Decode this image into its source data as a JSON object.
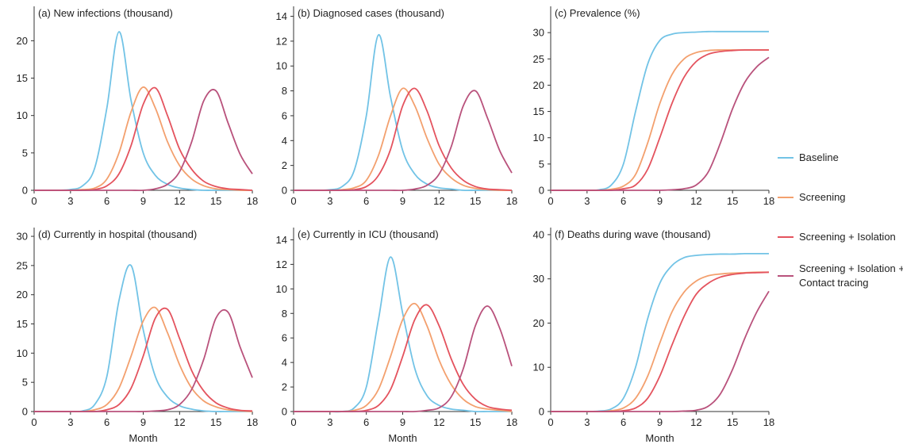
{
  "chart_data": [
    {
      "type": "line",
      "title": "(a) New infections (thousand)",
      "x": [
        0,
        1,
        2,
        3,
        4,
        5,
        6,
        7,
        8,
        9,
        10,
        11,
        12,
        13,
        14,
        15,
        16,
        17,
        18
      ],
      "xlim": [
        0,
        18
      ],
      "xticks": [
        0,
        3,
        6,
        9,
        12,
        15,
        18
      ],
      "ylim": [
        0,
        24.6
      ],
      "yticks": [
        0,
        5,
        10,
        15,
        20
      ],
      "series": [
        {
          "name": "Baseline",
          "color": "#72c3e6",
          "values": [
            0,
            0,
            0,
            0.1,
            0.6,
            3,
            11,
            21.2,
            12,
            5,
            2,
            0.8,
            0.3,
            0.1,
            0,
            0,
            0,
            0,
            0
          ]
        },
        {
          "name": "Screening",
          "color": "#f3a06e",
          "values": [
            0,
            0,
            0,
            0,
            0.1,
            0.3,
            1.5,
            5,
            10.5,
            13.8,
            11,
            6.5,
            3.3,
            1.5,
            0.6,
            0.2,
            0.1,
            0,
            0
          ]
        },
        {
          "name": "Screening + Isolation",
          "color": "#e4535e",
          "values": [
            0,
            0,
            0,
            0,
            0,
            0.1,
            0.6,
            2.2,
            6,
            11.5,
            13.7,
            10,
            5.5,
            2.8,
            1.2,
            0.5,
            0.2,
            0.1,
            0
          ]
        },
        {
          "name": "Screening + Isolation + Contact tracing",
          "color": "#b9527c",
          "values": [
            0,
            0,
            0,
            0,
            0,
            0,
            0,
            0,
            0,
            0,
            0.2,
            0.8,
            2.5,
            6.5,
            12,
            13.3,
            9,
            4.8,
            2.2
          ]
        }
      ]
    },
    {
      "type": "line",
      "title": "(b) Diagnosed cases (thousand)",
      "x": [
        0,
        1,
        2,
        3,
        4,
        5,
        6,
        7,
        8,
        9,
        10,
        11,
        12,
        13,
        14,
        15,
        16,
        17,
        18
      ],
      "xlim": [
        0,
        18
      ],
      "xticks": [
        0,
        3,
        6,
        9,
        12,
        15,
        18
      ],
      "ylim": [
        0,
        14.8
      ],
      "yticks": [
        0,
        2,
        4,
        6,
        8,
        10,
        12,
        14
      ],
      "series": [
        {
          "color": "#72c3e6",
          "values": [
            0,
            0,
            0,
            0.05,
            0.3,
            1.6,
            6,
            12.5,
            7.5,
            3.2,
            1.3,
            0.5,
            0.2,
            0.1,
            0,
            0,
            0,
            0,
            0
          ]
        },
        {
          "color": "#f3a06e",
          "values": [
            0,
            0,
            0,
            0,
            0.05,
            0.2,
            0.8,
            2.8,
            6,
            8.2,
            6.8,
            4.2,
            2.1,
            1,
            0.4,
            0.15,
            0.05,
            0,
            0
          ]
        },
        {
          "color": "#e4535e",
          "values": [
            0,
            0,
            0,
            0,
            0,
            0.05,
            0.3,
            1.2,
            3.3,
            6.8,
            8.2,
            6.4,
            3.6,
            1.8,
            0.8,
            0.3,
            0.1,
            0.05,
            0
          ]
        },
        {
          "color": "#b9527c",
          "values": [
            0,
            0,
            0,
            0,
            0,
            0,
            0,
            0,
            0,
            0,
            0.1,
            0.4,
            1.3,
            3.5,
            6.8,
            8,
            5.8,
            3.2,
            1.4
          ]
        }
      ]
    },
    {
      "type": "line",
      "title": "(c) Prevalence (%)",
      "x": [
        0,
        1,
        2,
        3,
        4,
        5,
        6,
        7,
        8,
        9,
        10,
        11,
        12,
        13,
        14,
        15,
        16,
        17,
        18
      ],
      "xlim": [
        0,
        18
      ],
      "xticks": [
        0,
        3,
        6,
        9,
        12,
        15,
        18
      ],
      "ylim": [
        0,
        35
      ],
      "yticks": [
        0,
        5,
        10,
        15,
        20,
        25,
        30
      ],
      "series": [
        {
          "color": "#72c3e6",
          "values": [
            0,
            0,
            0,
            0,
            0.1,
            1,
            5,
            15,
            24,
            28.5,
            29.7,
            30,
            30.1,
            30.2,
            30.2,
            30.2,
            30.2,
            30.2,
            30.2
          ]
        },
        {
          "color": "#f3a06e",
          "values": [
            0,
            0,
            0,
            0,
            0,
            0.2,
            0.8,
            3,
            9,
            16.5,
            22,
            25,
            26.2,
            26.6,
            26.7,
            26.7,
            26.7,
            26.7,
            26.7
          ]
        },
        {
          "color": "#e4535e",
          "values": [
            0,
            0,
            0,
            0,
            0,
            0,
            0.3,
            1,
            4,
            10,
            16.5,
            21.5,
            24.5,
            25.9,
            26.4,
            26.6,
            26.7,
            26.7,
            26.7
          ]
        },
        {
          "color": "#b9527c",
          "values": [
            0,
            0,
            0,
            0,
            0,
            0,
            0,
            0,
            0,
            0,
            0.1,
            0.3,
            1,
            3.5,
            9,
            15.5,
            20.5,
            23.5,
            25.3
          ]
        }
      ]
    },
    {
      "type": "line",
      "title": "(d) Currently in hospital (thousand)",
      "x_label": "Month",
      "x": [
        0,
        1,
        2,
        3,
        4,
        5,
        6,
        7,
        8,
        9,
        10,
        11,
        12,
        13,
        14,
        15,
        16,
        17,
        18
      ],
      "xlim": [
        0,
        18
      ],
      "xticks": [
        0,
        3,
        6,
        9,
        12,
        15,
        18
      ],
      "ylim": [
        0,
        31.5
      ],
      "yticks": [
        0,
        5,
        10,
        15,
        20,
        25,
        30
      ],
      "series": [
        {
          "color": "#72c3e6",
          "values": [
            0,
            0,
            0,
            0,
            0.1,
            1.2,
            6,
            19,
            25,
            14,
            6,
            2.5,
            1,
            0.4,
            0.1,
            0,
            0,
            0,
            0
          ]
        },
        {
          "color": "#f3a06e",
          "values": [
            0,
            0,
            0,
            0,
            0,
            0.3,
            1.2,
            4,
            9.5,
            15.5,
            17.8,
            13.5,
            8,
            4,
            1.8,
            0.8,
            0.3,
            0.1,
            0
          ]
        },
        {
          "color": "#e4535e",
          "values": [
            0,
            0,
            0,
            0,
            0,
            0,
            0.3,
            1.2,
            4,
            9.5,
            16,
            17.5,
            12.5,
            7,
            3.5,
            1.5,
            0.6,
            0.2,
            0.1
          ]
        },
        {
          "color": "#b9527c",
          "values": [
            0,
            0,
            0,
            0,
            0,
            0,
            0,
            0,
            0,
            0,
            0.1,
            0.3,
            1.2,
            3.8,
            9,
            16,
            17,
            11,
            5.8
          ]
        }
      ]
    },
    {
      "type": "line",
      "title": "(e) Currently in ICU (thousand)",
      "x_label": "Month",
      "x": [
        0,
        1,
        2,
        3,
        4,
        5,
        6,
        7,
        8,
        9,
        10,
        11,
        12,
        13,
        14,
        15,
        16,
        17,
        18
      ],
      "xlim": [
        0,
        18
      ],
      "xticks": [
        0,
        3,
        6,
        9,
        12,
        15,
        18
      ],
      "ylim": [
        0,
        15
      ],
      "yticks": [
        0,
        2,
        4,
        6,
        8,
        10,
        12,
        14
      ],
      "series": [
        {
          "color": "#72c3e6",
          "values": [
            0,
            0,
            0,
            0,
            0,
            0.3,
            2,
            7.5,
            12.6,
            8,
            3.5,
            1.3,
            0.5,
            0.2,
            0.1,
            0,
            0,
            0,
            0
          ]
        },
        {
          "color": "#f3a06e",
          "values": [
            0,
            0,
            0,
            0,
            0,
            0.1,
            0.5,
            1.8,
            4.5,
            7.5,
            8.8,
            7,
            4.2,
            2.2,
            1,
            0.4,
            0.2,
            0.1,
            0
          ]
        },
        {
          "color": "#e4535e",
          "values": [
            0,
            0,
            0,
            0,
            0,
            0,
            0.1,
            0.5,
            1.8,
            4.5,
            7.5,
            8.7,
            7,
            4.3,
            2.2,
            1,
            0.4,
            0.2,
            0.1
          ]
        },
        {
          "color": "#b9527c",
          "values": [
            0,
            0,
            0,
            0,
            0,
            0,
            0,
            0,
            0,
            0,
            0,
            0.1,
            0.3,
            1.2,
            3.5,
            7,
            8.6,
            6.8,
            3.7
          ]
        }
      ]
    },
    {
      "type": "line",
      "title": "(f) Deaths during wave (thousand)",
      "x_label": "Month",
      "x": [
        0,
        1,
        2,
        3,
        4,
        5,
        6,
        7,
        8,
        9,
        10,
        11,
        12,
        13,
        14,
        15,
        16,
        17,
        18
      ],
      "xlim": [
        0,
        18
      ],
      "xticks": [
        0,
        3,
        6,
        9,
        12,
        15,
        18
      ],
      "ylim": [
        0,
        41.6
      ],
      "yticks": [
        0,
        10,
        20,
        30,
        40
      ],
      "series": [
        {
          "color": "#72c3e6",
          "values": [
            0,
            0,
            0,
            0,
            0.1,
            0.6,
            3,
            10,
            21,
            29,
            33,
            34.8,
            35.3,
            35.5,
            35.6,
            35.6,
            35.7,
            35.7,
            35.7
          ]
        },
        {
          "color": "#f3a06e",
          "values": [
            0,
            0,
            0,
            0,
            0,
            0.2,
            0.8,
            3,
            8,
            15.5,
            22.5,
            27,
            29.5,
            30.7,
            31.1,
            31.3,
            31.4,
            31.5,
            31.5
          ]
        },
        {
          "color": "#e4535e",
          "values": [
            0,
            0,
            0,
            0,
            0,
            0,
            0.2,
            0.8,
            3,
            8,
            15,
            21.5,
            26.5,
            29,
            30.4,
            31,
            31.3,
            31.4,
            31.5
          ]
        },
        {
          "color": "#b9527c",
          "values": [
            0,
            0,
            0,
            0,
            0,
            0,
            0,
            0,
            0,
            0,
            0,
            0.1,
            0.3,
            1.2,
            4,
            9.5,
            16.5,
            22.5,
            27.2
          ]
        }
      ]
    }
  ]
}
